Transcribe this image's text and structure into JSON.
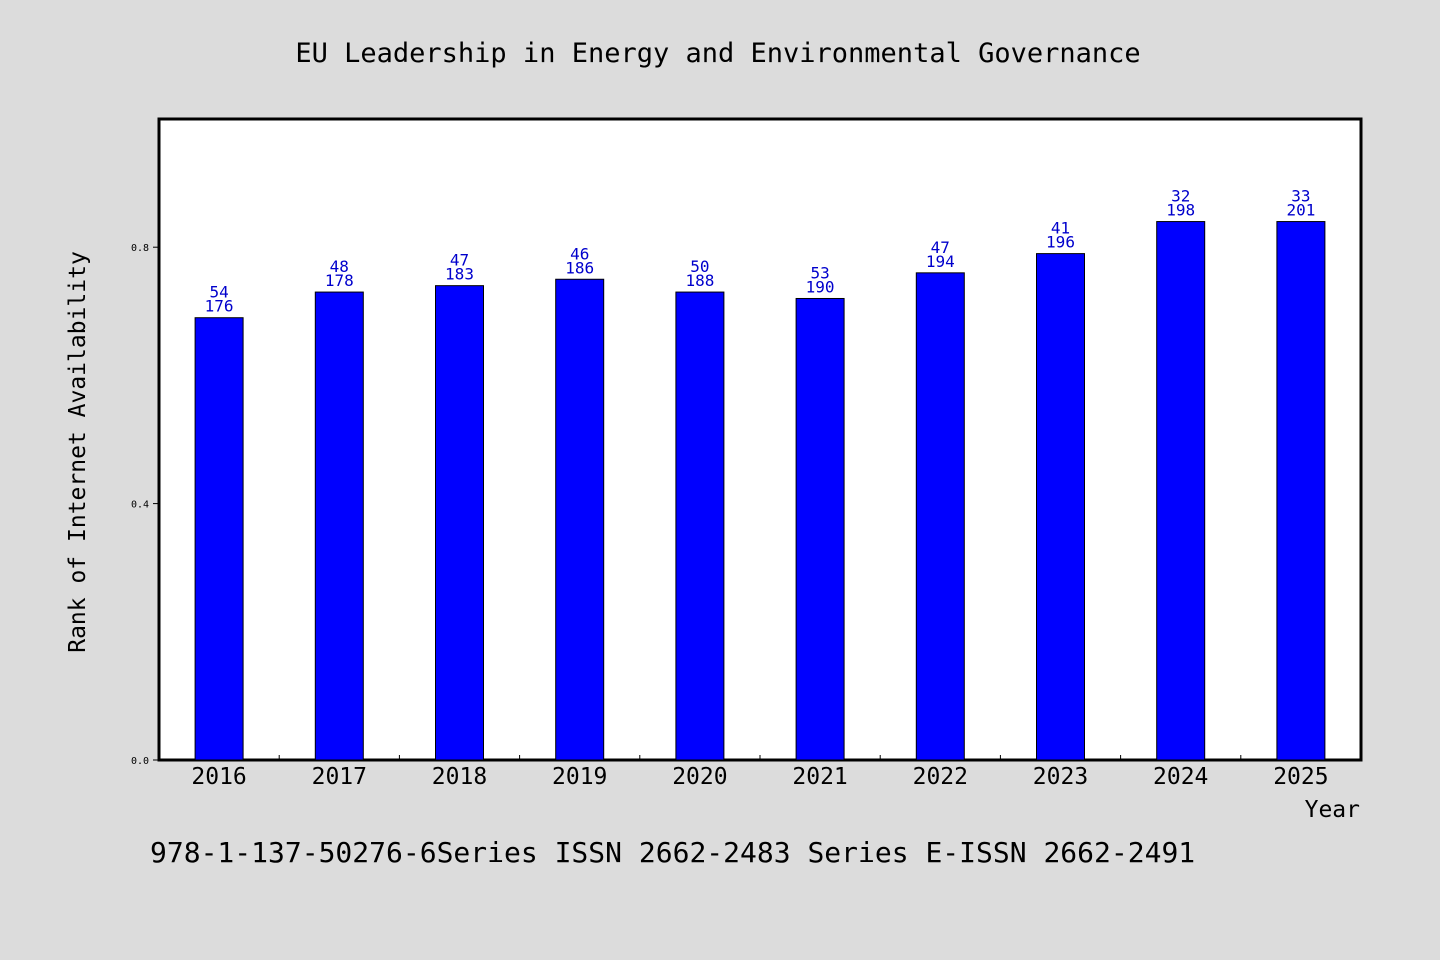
{
  "chart_data": {
    "type": "bar",
    "title": "EU Leadership in Energy and Environmental Governance",
    "xlabel": "Year",
    "ylabel": "Rank of Internet Availability",
    "categories": [
      "2016",
      "2017",
      "2018",
      "2019",
      "2020",
      "2021",
      "2022",
      "2023",
      "2024",
      "2025"
    ],
    "values": [
      0.69,
      0.73,
      0.74,
      0.75,
      0.73,
      0.72,
      0.76,
      0.79,
      0.84,
      0.84
    ],
    "data_labels_top": [
      "54",
      "48",
      "47",
      "46",
      "50",
      "53",
      "47",
      "41",
      "32",
      "33"
    ],
    "data_labels_bottom": [
      "176",
      "178",
      "183",
      "186",
      "188",
      "190",
      "194",
      "196",
      "198",
      "201"
    ],
    "ylim": [
      0.0,
      1.0
    ],
    "yticks": [
      0.0,
      0.4,
      0.8
    ],
    "ytick_labels": [
      "0.0",
      "0.4",
      "0.8"
    ],
    "grid": false,
    "colors": {
      "bar": "#0000ff",
      "bar_edge": "#000000",
      "data_label": "#0000cc",
      "background": "#dcdcdc",
      "plot_bg": "#ffffff"
    }
  },
  "footer": "978-1-137-50276-6Series ISSN 2662-2483 Series E-ISSN 2662-2491"
}
